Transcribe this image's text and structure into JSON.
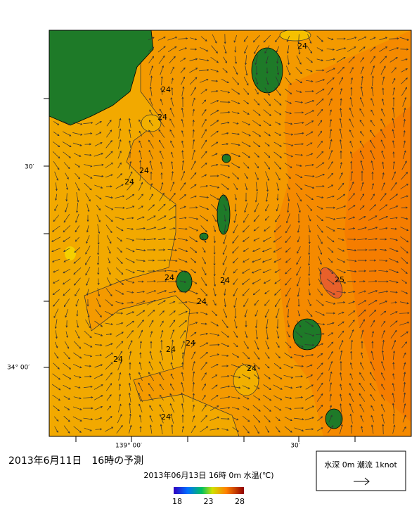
{
  "map": {
    "title": "2013年6月11日　16時の予測",
    "subtitle": "2013年06月13日 16時 0m 水温(℃)",
    "lat_labels": [
      "30′",
      "34° 00′"
    ],
    "lon_labels": [
      "139° 00′",
      "30′"
    ],
    "contour_labels": [
      24,
      24,
      24,
      24,
      24,
      24,
      24,
      24,
      24,
      24,
      24,
      24,
      24,
      25
    ],
    "colorbar_ticks": [
      18,
      23,
      28
    ],
    "legend": "水深 0m 潮流 1knot"
  }
}
